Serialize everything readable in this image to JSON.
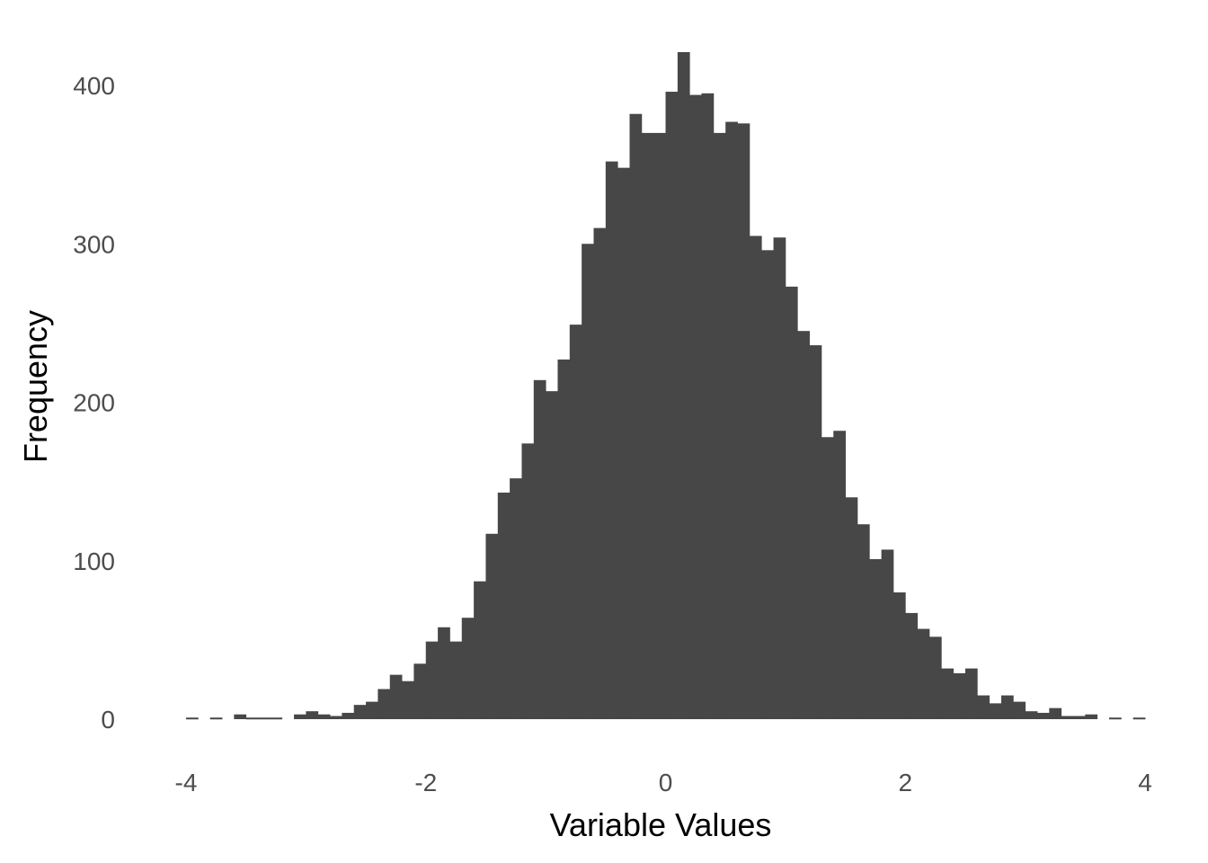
{
  "chart_data": {
    "type": "bar",
    "subtype": "histogram",
    "title": "",
    "xlabel": "Variable Values",
    "ylabel": "Frequency",
    "xlim": [
      -4,
      4
    ],
    "ylim": [
      0,
      420
    ],
    "x_ticks": [
      -4,
      -2,
      0,
      2,
      4
    ],
    "x_tick_labels": [
      "-4",
      "-2",
      "0",
      "2",
      "4"
    ],
    "y_ticks": [
      0,
      100,
      200,
      300,
      400
    ],
    "y_tick_labels": [
      "0",
      "100",
      "200",
      "300",
      "400"
    ],
    "grid": false,
    "legend": null,
    "bar_color": "#474747",
    "bin_width": 0.1,
    "bin_start": -4.0,
    "values": [
      1,
      0,
      1,
      0,
      3,
      1,
      1,
      1,
      0,
      3,
      5,
      3,
      2,
      4,
      9,
      11,
      19,
      28,
      24,
      35,
      49,
      58,
      49,
      64,
      87,
      117,
      143,
      152,
      174,
      214,
      207,
      227,
      249,
      300,
      310,
      352,
      348,
      382,
      370,
      370,
      396,
      421,
      394,
      395,
      370,
      377,
      376,
      305,
      296,
      304,
      273,
      245,
      236,
      178,
      182,
      140,
      123,
      101,
      107,
      80,
      67,
      57,
      52,
      32,
      29,
      32,
      15,
      10,
      15,
      11,
      5,
      4,
      7,
      2,
      2,
      3,
      0,
      1,
      0,
      1
    ],
    "categories": [
      "-4.0",
      "-3.9",
      "-3.8",
      "-3.7",
      "-3.6",
      "-3.5",
      "-3.4",
      "-3.3",
      "-3.2",
      "-3.1",
      "-3.0",
      "-2.9",
      "-2.8",
      "-2.7",
      "-2.6",
      "-2.5",
      "-2.4",
      "-2.3",
      "-2.2",
      "-2.1",
      "-2.0",
      "-1.9",
      "-1.8",
      "-1.7",
      "-1.6",
      "-1.5",
      "-1.4",
      "-1.3",
      "-1.2",
      "-1.1",
      "-1.0",
      "-0.9",
      "-0.8",
      "-0.7",
      "-0.6",
      "-0.5",
      "-0.4",
      "-0.3",
      "-0.2",
      "-0.1",
      "0.0",
      "0.1",
      "0.2",
      "0.3",
      "0.4",
      "0.5",
      "0.6",
      "0.7",
      "0.8",
      "0.9",
      "1.0",
      "1.1",
      "1.2",
      "1.3",
      "1.4",
      "1.5",
      "1.6",
      "1.7",
      "1.8",
      "1.9",
      "2.0",
      "2.1",
      "2.2",
      "2.3",
      "2.4",
      "2.5",
      "2.6",
      "2.7",
      "2.8",
      "2.9",
      "3.0",
      "3.1",
      "3.2",
      "3.3",
      "3.4",
      "3.5",
      "3.6",
      "3.7",
      "3.8",
      "3.9"
    ]
  }
}
